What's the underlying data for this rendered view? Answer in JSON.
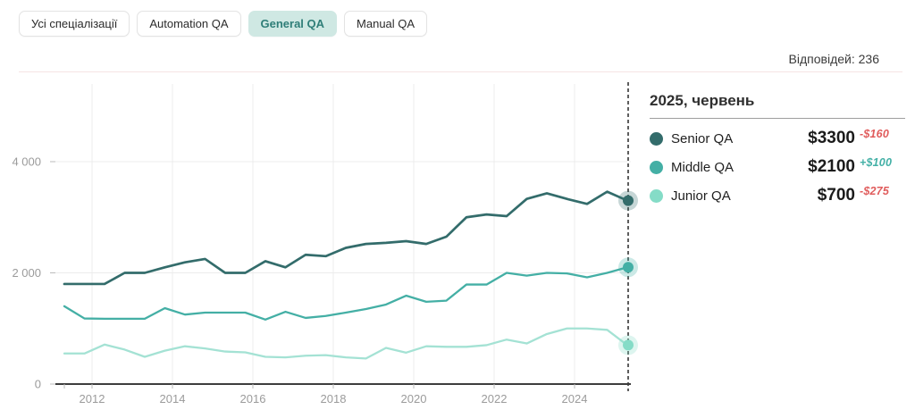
{
  "tabs": [
    {
      "label": "Усі спеціалізації",
      "selected": false
    },
    {
      "label": "Automation QA",
      "selected": false
    },
    {
      "label": "General QA",
      "selected": true
    },
    {
      "label": "Manual QA",
      "selected": false
    }
  ],
  "responses_label": "Відповідей: 236",
  "tooltip": {
    "title": "2025, червень",
    "rows": [
      {
        "label": "Senior QA",
        "value": "$3300",
        "delta": "-$160",
        "direction": "down"
      },
      {
        "label": "Middle QA",
        "value": "$2100",
        "delta": "+$100",
        "direction": "up"
      },
      {
        "label": "Junior QA",
        "value": "$700",
        "delta": "-$275",
        "direction": "down"
      }
    ]
  },
  "colors": {
    "senior": "#336c6b",
    "middle": "#44afa5",
    "junior": "#a4e2d4",
    "junior_dot": "#85dcc7",
    "delta_down": "#e05c5c",
    "delta_up": "#43b0a6",
    "selected_tab_bg": "#cfe8e3",
    "selected_tab_text": "#2f7e78",
    "grid": "#ececec",
    "axis": "#3d3d3d",
    "tick_label": "#9b9b9b",
    "dashed_line": "#1a1a1a"
  },
  "chart_data": {
    "type": "line",
    "title": "",
    "xlabel": "",
    "ylabel": "",
    "x": [
      2011.5,
      2012.0,
      2012.5,
      2013.0,
      2013.5,
      2014.0,
      2014.5,
      2015.0,
      2015.5,
      2016.0,
      2016.5,
      2017.0,
      2017.5,
      2018.0,
      2018.5,
      2019.0,
      2019.5,
      2020.0,
      2020.5,
      2021.0,
      2021.5,
      2022.0,
      2022.5,
      2023.0,
      2023.5,
      2024.0,
      2024.5,
      2025.0,
      2025.5
    ],
    "series": [
      {
        "name": "Senior QA",
        "values": [
          1800,
          1800,
          1800,
          2000,
          2000,
          2100,
          2190,
          2250,
          2000,
          2000,
          2210,
          2100,
          2325,
          2300,
          2450,
          2520,
          2540,
          2570,
          2520,
          2650,
          3000,
          3050,
          3020,
          3330,
          3430,
          3330,
          3240,
          3460,
          3300
        ]
      },
      {
        "name": "Middle QA",
        "values": [
          1400,
          1180,
          1175,
          1175,
          1175,
          1365,
          1250,
          1285,
          1285,
          1285,
          1160,
          1300,
          1190,
          1225,
          1285,
          1350,
          1430,
          1590,
          1480,
          1500,
          1790,
          1790,
          2000,
          1950,
          2000,
          1990,
          1920,
          2000,
          2100
        ]
      },
      {
        "name": "Junior QA",
        "values": [
          550,
          550,
          710,
          620,
          490,
          600,
          680,
          640,
          585,
          570,
          490,
          480,
          510,
          520,
          480,
          460,
          650,
          565,
          680,
          670,
          670,
          700,
          800,
          730,
          900,
          1000,
          1000,
          975,
          700
        ]
      }
    ],
    "x_ticks": [
      2012,
      2014,
      2016,
      2018,
      2020,
      2022,
      2024
    ],
    "y_ticks": [
      0,
      2000,
      4000
    ],
    "y_tick_labels": [
      "0",
      "2 000",
      "4 000"
    ],
    "ylim": [
      0,
      4400
    ],
    "grid": "on",
    "legend_position": "right",
    "marker_x": 2025.5
  }
}
